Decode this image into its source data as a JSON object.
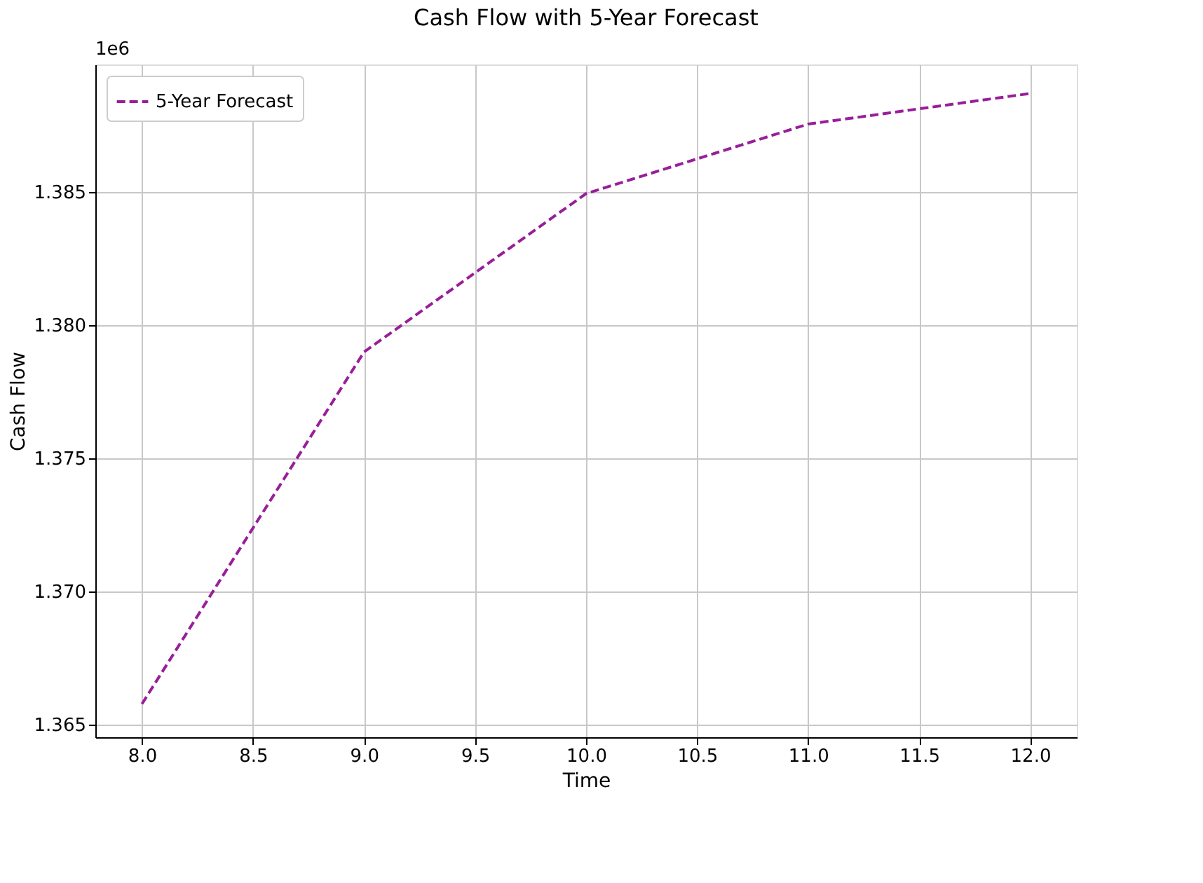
{
  "chart_data": {
    "type": "line",
    "title": "Cash Flow with 5-Year Forecast",
    "xlabel": "Time",
    "ylabel": "Cash Flow",
    "x": [
      8,
      9,
      10,
      11,
      12
    ],
    "series": [
      {
        "name": "5-Year Forecast",
        "color": "#991e99",
        "values": [
          1.36578,
          1.379,
          1.38495,
          1.38756,
          1.38871
        ]
      }
    ],
    "xlim": [
      7.79,
      12.21
    ],
    "xticks": [
      {
        "value": 8,
        "label": "8.0"
      },
      {
        "value": 8.5,
        "label": "8.5"
      },
      {
        "value": 9,
        "label": "9.0"
      },
      {
        "value": 9.5,
        "label": "9.5"
      },
      {
        "value": 10,
        "label": "10.0"
      },
      {
        "value": 10.5,
        "label": "10.5"
      },
      {
        "value": 11,
        "label": "11.0"
      },
      {
        "value": 11.5,
        "label": "11.5"
      },
      {
        "value": 12,
        "label": "12.0"
      }
    ],
    "ylim": [
      1.36453,
      1.3898
    ],
    "yticks": [
      1.365,
      {
        "value": 1.37,
        "label": "1.370"
      },
      1.375,
      {
        "value": 1.38,
        "label": "1.380"
      },
      1.385
    ],
    "annotations": [
      "1e6"
    ],
    "grid": true,
    "legend": "top left",
    "line_style": "dashed",
    "marker": "none"
  }
}
